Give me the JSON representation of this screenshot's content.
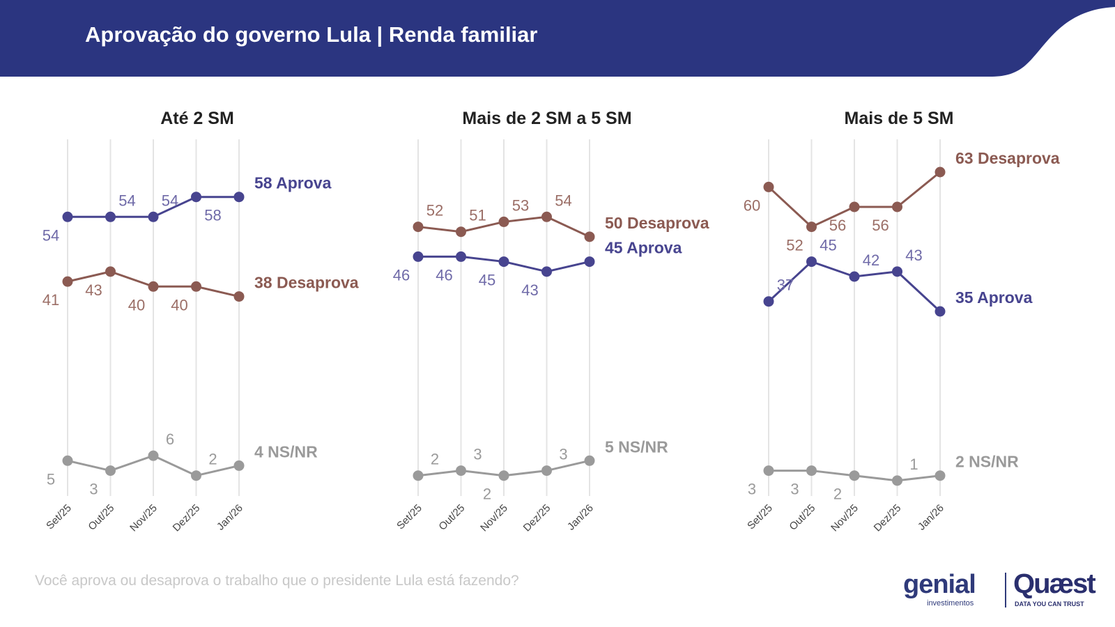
{
  "header": {
    "title": "Aprovação do governo Lula | Renda familiar",
    "bg_color": "#2b3580"
  },
  "colors": {
    "aprova": "#47448f",
    "desaprova": "#8b5a52",
    "nsnr": "#9a9a9a",
    "grid": "#e4e4e4",
    "aprova_label": "#6f6aa8",
    "desaprova_label": "#9b6e66",
    "nsnr_label": "#9a9a9a"
  },
  "question": "Você aprova ou desaprova o trabalho que o presidente Lula está fazendo?",
  "logos": {
    "genial": "genial",
    "genial_sub": "investimentos",
    "quaest": "Quæst",
    "quaest_sub": "DATA YOU CAN TRUST"
  },
  "chart_data": [
    {
      "type": "line",
      "title": "Até 2 SM",
      "categories": [
        "Set/25",
        "Out/25",
        "Nov/25",
        "Dez/25",
        "Jan/26"
      ],
      "ylim": [
        0,
        70
      ],
      "series": [
        {
          "name": "Aprova",
          "values": [
            54,
            54,
            54,
            58,
            58
          ],
          "end_label": "58 Aprova"
        },
        {
          "name": "Desaprova",
          "values": [
            41,
            43,
            40,
            40,
            38
          ],
          "end_label": "38 Desaprova"
        },
        {
          "name": "NS/NR",
          "values": [
            5,
            3,
            6,
            2,
            4
          ],
          "end_label": "4 NS/NR"
        }
      ]
    },
    {
      "type": "line",
      "title": "Mais de 2 SM a 5 SM",
      "categories": [
        "Set/25",
        "Out/25",
        "Nov/25",
        "Dez/25",
        "Jan/26"
      ],
      "ylim": [
        0,
        70
      ],
      "series": [
        {
          "name": "Aprova",
          "values": [
            46,
            46,
            45,
            43,
            45
          ],
          "end_label": "45 Aprova"
        },
        {
          "name": "Desaprova",
          "values": [
            52,
            51,
            53,
            54,
            50
          ],
          "end_label": "50 Desaprova"
        },
        {
          "name": "NS/NR",
          "values": [
            2,
            3,
            2,
            3,
            5
          ],
          "end_label": "5 NS/NR"
        }
      ]
    },
    {
      "type": "line",
      "title": "Mais de 5 SM",
      "categories": [
        "Set/25",
        "Out/25",
        "Nov/25",
        "Dez/25",
        "Jan/26"
      ],
      "ylim": [
        0,
        70
      ],
      "series": [
        {
          "name": "Aprova",
          "values": [
            37,
            45,
            42,
            43,
            35
          ],
          "end_label": "35 Aprova"
        },
        {
          "name": "Desaprova",
          "values": [
            60,
            52,
            56,
            56,
            63
          ],
          "end_label": "63 Desaprova"
        },
        {
          "name": "NS/NR",
          "values": [
            3,
            3,
            2,
            1,
            2
          ],
          "end_label": "2 NS/NR"
        }
      ]
    }
  ]
}
